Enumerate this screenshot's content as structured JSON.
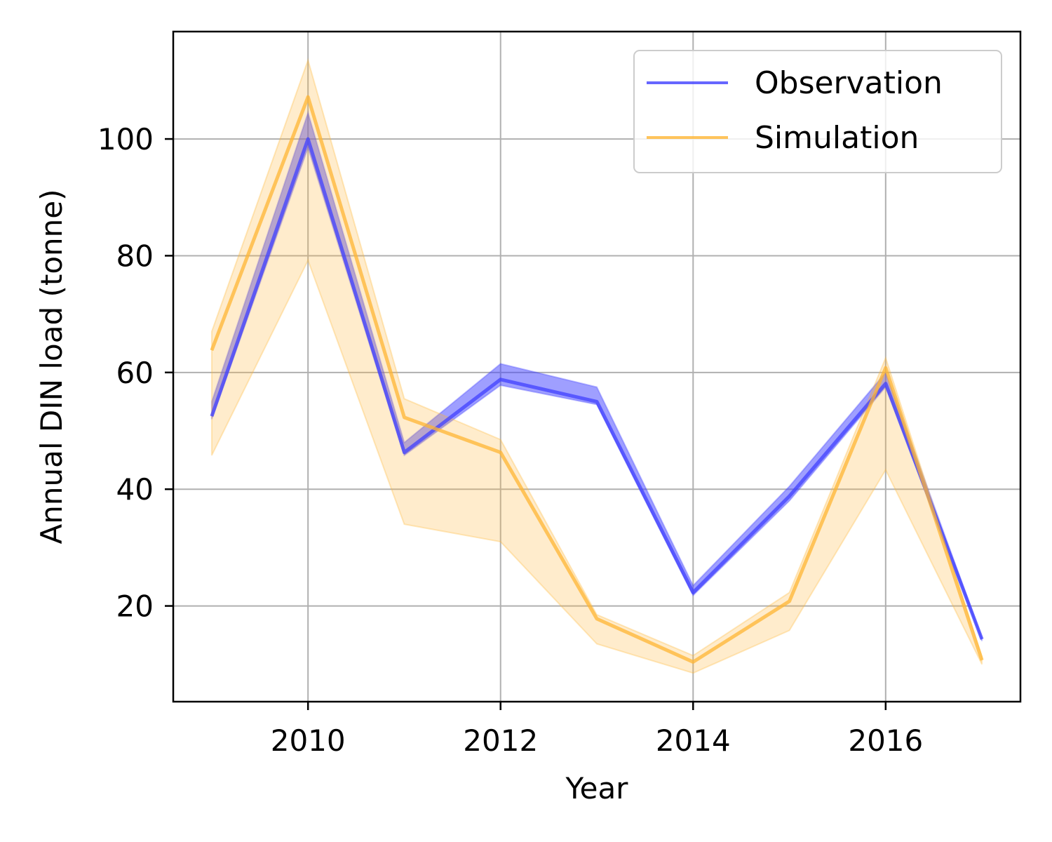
{
  "chart_data": {
    "type": "line",
    "title": "",
    "xlabel": "Year",
    "ylabel": "Annual DIN load (tonne)",
    "xlim": [
      2008.6,
      2017.4
    ],
    "ylim": [
      3.6,
      118.4
    ],
    "xticks": [
      2010,
      2012,
      2014,
      2016
    ],
    "yticks": [
      20,
      40,
      60,
      80,
      100
    ],
    "grid": true,
    "legend_position": "top-right",
    "x": [
      2009,
      2010,
      2011,
      2012,
      2013,
      2014,
      2015,
      2016,
      2017
    ],
    "series": [
      {
        "name": "Observation",
        "color": "#4040ff",
        "values": [
          52.5,
          100.0,
          46.3,
          58.8,
          55.0,
          22.3,
          38.8,
          58.1,
          14.3
        ],
        "band_lower": [
          52.0,
          98.5,
          45.8,
          57.8,
          54.5,
          21.8,
          38.0,
          57.5,
          14.0
        ],
        "band_upper": [
          55.0,
          104.5,
          48.0,
          61.5,
          57.5,
          23.5,
          40.5,
          60.0,
          14.6
        ]
      },
      {
        "name": "Simulation",
        "color": "#ffb533",
        "values": [
          63.8,
          107.2,
          52.3,
          46.3,
          17.8,
          10.4,
          20.8,
          60.8,
          10.7
        ],
        "band_lower": [
          45.8,
          79.2,
          34.0,
          31.0,
          13.5,
          8.5,
          15.8,
          43.3,
          10.0
        ],
        "band_upper": [
          67.0,
          113.5,
          55.5,
          48.5,
          18.5,
          11.5,
          22.3,
          62.5,
          11.3
        ]
      }
    ]
  }
}
